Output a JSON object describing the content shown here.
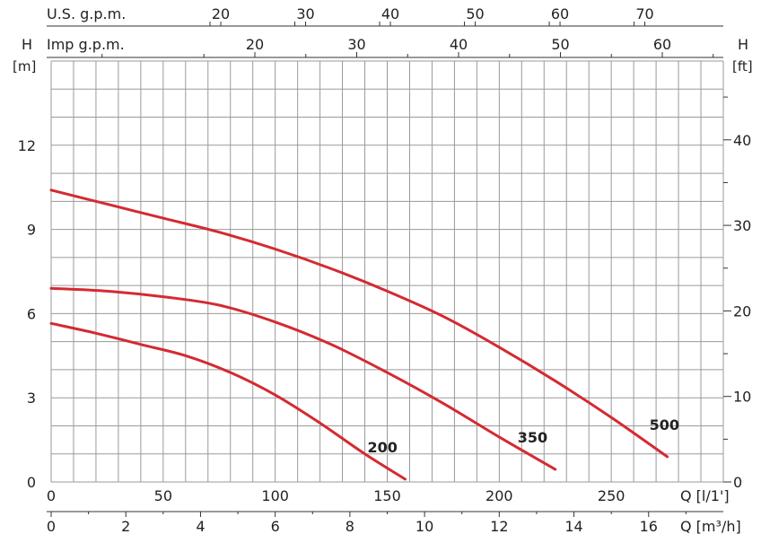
{
  "chart_data": {
    "type": "line",
    "colors": {
      "curve": "#d42a32",
      "grid": "#9a9a9a",
      "axis": "#333333"
    },
    "grid": true,
    "x_flow_lpm": {
      "label": "Q [l/1']",
      "ticks": [
        0,
        50,
        100,
        150,
        200,
        250
      ],
      "range": [
        0,
        300
      ]
    },
    "x_flow_m3h": {
      "label": "Q [m³/h]",
      "ticks": [
        0,
        2,
        4,
        6,
        8,
        10,
        12,
        14,
        16
      ],
      "range": [
        0,
        18
      ]
    },
    "x_us_gpm": {
      "label": "U.S. g.p.m.",
      "ticks": [
        20,
        30,
        40,
        50,
        60,
        70
      ]
    },
    "x_imp_gpm": {
      "label": "Imp g.p.m.",
      "ticks": [
        20,
        30,
        40,
        50,
        60
      ]
    },
    "y_left": {
      "label_top": "H",
      "label_unit": "[m]",
      "ticks": [
        0,
        3,
        6,
        9,
        12
      ],
      "range": [
        0,
        15
      ]
    },
    "y_right": {
      "label_top": "H",
      "label_unit": "[ft]",
      "ticks": [
        0,
        10,
        20,
        30,
        40
      ]
    },
    "series": [
      {
        "name": "200",
        "x": [
          0,
          20,
          40,
          60,
          80,
          100,
          120,
          140,
          158
        ],
        "y": [
          5.65,
          5.3,
          4.9,
          4.5,
          3.9,
          3.1,
          2.1,
          1.0,
          0.1
        ]
      },
      {
        "name": "350",
        "x": [
          0,
          25,
          50,
          75,
          100,
          125,
          150,
          175,
          200,
          225
        ],
        "y": [
          6.9,
          6.8,
          6.6,
          6.3,
          5.7,
          4.9,
          3.9,
          2.8,
          1.6,
          0.45
        ]
      },
      {
        "name": "500",
        "x": [
          0,
          25,
          50,
          75,
          100,
          125,
          150,
          175,
          200,
          225,
          250,
          275
        ],
        "y": [
          10.4,
          9.9,
          9.4,
          8.9,
          8.3,
          7.6,
          6.8,
          5.9,
          4.8,
          3.6,
          2.3,
          0.9
        ]
      }
    ]
  }
}
